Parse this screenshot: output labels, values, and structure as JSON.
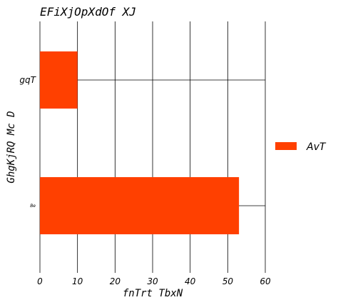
{
  "chart_data": {
    "type": "bar",
    "orientation": "horizontal",
    "title": "EFiXjOpXdOf XJ",
    "xlabel": "fnTrt TbxN",
    "ylabel": "GhgKjRQ Mc D",
    "categories": [
      "gqT",
      "Be"
    ],
    "series": [
      {
        "name": "AvT",
        "values": [
          10,
          53
        ],
        "color": "#ff4000"
      }
    ],
    "xlim": [
      0,
      60
    ],
    "xticks": [
      0,
      10,
      20,
      30,
      40,
      50,
      60
    ],
    "grid": true,
    "legend_position": "right"
  }
}
